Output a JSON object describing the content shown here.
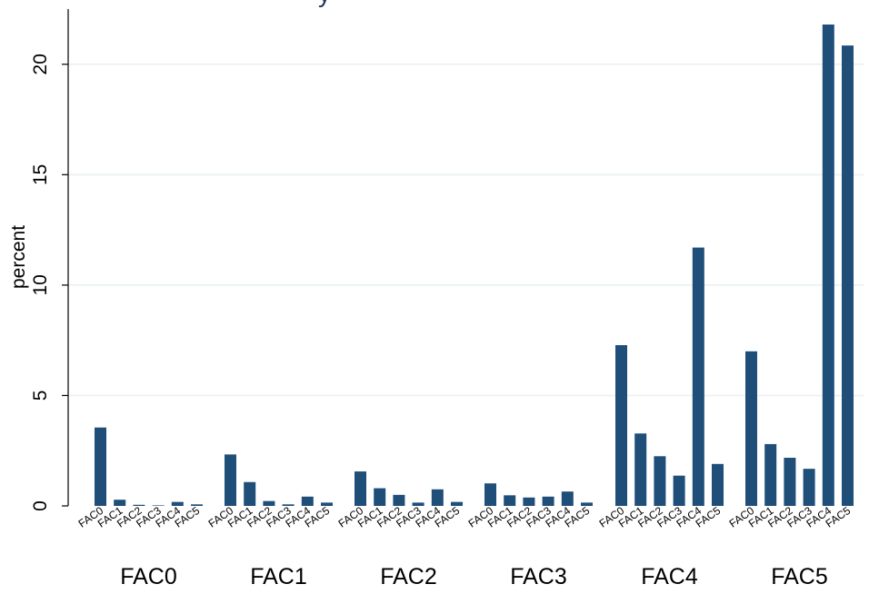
{
  "chart_data": {
    "type": "bar",
    "title_fragment": "y",
    "ylabel": "percent",
    "xlabel": "",
    "ylim": [
      0,
      22.5
    ],
    "yticks": [
      0,
      5,
      10,
      15,
      20
    ],
    "grid": true,
    "bar_color": "#1f4e79",
    "groups": [
      "FAC0",
      "FAC1",
      "FAC2",
      "FAC3",
      "FAC4",
      "FAC5"
    ],
    "categories": [
      "FAC0",
      "FAC1",
      "FAC2",
      "FAC3",
      "FAC4",
      "FAC5"
    ],
    "series": [
      {
        "group": "FAC0",
        "values": [
          3.55,
          0.28,
          0.05,
          0.02,
          0.18,
          0.07
        ]
      },
      {
        "group": "FAC1",
        "values": [
          2.33,
          1.08,
          0.22,
          0.07,
          0.42,
          0.15
        ]
      },
      {
        "group": "FAC2",
        "values": [
          1.56,
          0.8,
          0.5,
          0.15,
          0.75,
          0.18
        ]
      },
      {
        "group": "FAC3",
        "values": [
          1.02,
          0.48,
          0.38,
          0.42,
          0.65,
          0.15
        ]
      },
      {
        "group": "FAC4",
        "values": [
          7.28,
          3.28,
          2.25,
          1.37,
          11.7,
          1.9
        ]
      },
      {
        "group": "FAC5",
        "values": [
          7.0,
          2.8,
          2.18,
          1.68,
          21.8,
          20.85
        ]
      }
    ]
  }
}
